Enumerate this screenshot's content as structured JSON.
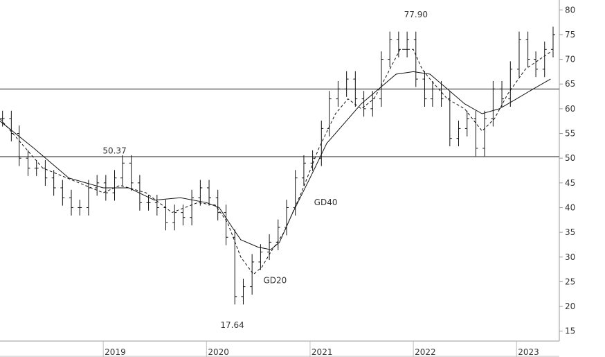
{
  "chart_data": {
    "type": "line",
    "title": "",
    "xlabel": "",
    "ylabel": "",
    "x_range": [
      "2018-01",
      "2023-06"
    ],
    "ylim": [
      13,
      82
    ],
    "y_ticks": [
      15,
      20,
      25,
      30,
      35,
      40,
      45,
      50,
      55,
      60,
      65,
      70,
      75,
      80
    ],
    "x_ticks": [
      {
        "label": "2019",
        "date": "2019-01"
      },
      {
        "label": "2020",
        "date": "2020-01"
      },
      {
        "label": "2021",
        "date": "2021-01"
      },
      {
        "label": "2022",
        "date": "2022-01"
      },
      {
        "label": "2023",
        "date": "2023-01"
      }
    ],
    "grid": false,
    "horizontal_lines": [
      64,
      50.3
    ],
    "series": [
      {
        "name": "",
        "style": "bar",
        "points": [
          [
            "2018-01-10",
            58
          ],
          [
            "2018-02-10",
            55
          ],
          [
            "2018-03-10",
            50
          ],
          [
            "2018-04-10",
            48
          ],
          [
            "2018-05-10",
            48
          ],
          [
            "2018-06-10",
            46
          ],
          [
            "2018-07-10",
            44
          ],
          [
            "2018-08-10",
            42
          ],
          [
            "2018-09-10",
            40
          ],
          [
            "2018-10-10",
            40
          ],
          [
            "2018-11-10",
            44
          ],
          [
            "2018-12-10",
            45
          ],
          [
            "2019-01-10",
            43
          ],
          [
            "2019-02-10",
            46
          ],
          [
            "2019-03-10",
            49
          ],
          [
            "2019-04-10",
            45
          ],
          [
            "2019-05-10",
            41
          ],
          [
            "2019-06-10",
            41
          ],
          [
            "2019-07-10",
            40
          ],
          [
            "2019-08-10",
            37
          ],
          [
            "2019-09-10",
            39
          ],
          [
            "2019-10-10",
            38
          ],
          [
            "2019-11-10",
            42
          ],
          [
            "2019-12-10",
            44
          ],
          [
            "2020-01-10",
            42
          ],
          [
            "2020-02-10",
            39
          ],
          [
            "2020-03-10",
            34
          ],
          [
            "2020-04-10",
            22
          ],
          [
            "2020-05-10",
            24
          ],
          [
            "2020-06-10",
            29
          ],
          [
            "2020-07-10",
            31
          ],
          [
            "2020-08-10",
            33
          ],
          [
            "2020-09-10",
            36
          ],
          [
            "2020-10-10",
            40
          ],
          [
            "2020-11-10",
            46
          ],
          [
            "2020-12-10",
            49
          ],
          [
            "2021-01-10",
            50
          ],
          [
            "2021-02-10",
            56
          ],
          [
            "2021-03-10",
            62
          ],
          [
            "2021-04-10",
            64
          ],
          [
            "2021-05-10",
            66
          ],
          [
            "2021-06-10",
            62
          ],
          [
            "2021-07-10",
            60
          ],
          [
            "2021-08-10",
            62
          ],
          [
            "2021-09-10",
            70
          ],
          [
            "2021-10-10",
            74
          ],
          [
            "2021-11-10",
            72
          ],
          [
            "2021-12-10",
            74
          ],
          [
            "2022-01-10",
            66
          ],
          [
            "2022-02-10",
            62
          ],
          [
            "2022-03-10",
            64
          ],
          [
            "2022-04-10",
            62
          ],
          [
            "2022-05-10",
            54
          ],
          [
            "2022-06-10",
            56
          ],
          [
            "2022-07-10",
            58
          ],
          [
            "2022-08-10",
            52
          ],
          [
            "2022-09-10",
            58
          ],
          [
            "2022-10-10",
            64
          ],
          [
            "2022-11-10",
            62
          ],
          [
            "2022-12-10",
            68
          ],
          [
            "2023-01-10",
            74
          ],
          [
            "2023-02-10",
            70
          ],
          [
            "2023-03-10",
            68
          ],
          [
            "2023-04-10",
            72
          ],
          [
            "2023-05-10",
            75
          ]
        ]
      },
      {
        "name": "GD20",
        "style": "dashed",
        "points": [
          [
            "2018-01-01",
            58
          ],
          [
            "2018-06-01",
            48
          ],
          [
            "2019-01-01",
            43
          ],
          [
            "2019-03-01",
            44.5
          ],
          [
            "2019-06-01",
            43
          ],
          [
            "2019-09-01",
            39
          ],
          [
            "2019-12-01",
            41
          ],
          [
            "2020-02-01",
            40.5
          ],
          [
            "2020-03-15",
            37
          ],
          [
            "2020-05-01",
            30
          ],
          [
            "2020-06-15",
            26.5
          ],
          [
            "2020-07-15",
            28
          ],
          [
            "2020-08-15",
            31
          ],
          [
            "2020-10-01",
            35
          ],
          [
            "2020-12-01",
            43
          ],
          [
            "2021-02-01",
            52
          ],
          [
            "2021-04-01",
            59
          ],
          [
            "2021-05-15",
            62
          ],
          [
            "2021-07-01",
            60
          ],
          [
            "2021-08-15",
            62
          ],
          [
            "2021-10-01",
            67
          ],
          [
            "2021-11-15",
            72
          ],
          [
            "2022-01-01",
            72
          ],
          [
            "2022-02-01",
            68
          ],
          [
            "2022-03-01",
            66
          ],
          [
            "2022-05-01",
            62
          ],
          [
            "2022-07-01",
            60
          ],
          [
            "2022-09-01",
            55.5
          ],
          [
            "2022-10-15",
            58
          ],
          [
            "2022-12-01",
            63
          ],
          [
            "2023-02-01",
            68
          ],
          [
            "2023-05-01",
            71.5
          ]
        ]
      },
      {
        "name": "GD40",
        "style": "solid",
        "points": [
          [
            "2018-01-01",
            57.5
          ],
          [
            "2018-05-01",
            52
          ],
          [
            "2018-09-01",
            46
          ],
          [
            "2019-01-01",
            44
          ],
          [
            "2019-04-01",
            44
          ],
          [
            "2019-07-01",
            41.5
          ],
          [
            "2019-10-01",
            42
          ],
          [
            "2020-01-01",
            41
          ],
          [
            "2020-02-15",
            40
          ],
          [
            "2020-04-01",
            36
          ],
          [
            "2020-05-01",
            33.5
          ],
          [
            "2020-07-01",
            32
          ],
          [
            "2020-08-15",
            31.5
          ],
          [
            "2020-09-15",
            33
          ],
          [
            "2020-11-01",
            39
          ],
          [
            "2021-01-01",
            46
          ],
          [
            "2021-03-01",
            53
          ],
          [
            "2021-05-01",
            57
          ],
          [
            "2021-07-01",
            61
          ],
          [
            "2021-09-01",
            64
          ],
          [
            "2021-11-01",
            67
          ],
          [
            "2022-01-01",
            67.5
          ],
          [
            "2022-03-01",
            67
          ],
          [
            "2022-05-01",
            64
          ],
          [
            "2022-07-01",
            61
          ],
          [
            "2022-09-01",
            59
          ],
          [
            "2022-11-01",
            60
          ],
          [
            "2023-01-01",
            62
          ],
          [
            "2023-03-01",
            64
          ],
          [
            "2023-05-01",
            66
          ]
        ]
      }
    ],
    "annotations": [
      {
        "text": "50.37",
        "date": "2019-02-10",
        "value": 50.37,
        "anchor": "above"
      },
      {
        "text": "77.90",
        "date": "2022-01-10",
        "value": 77.9,
        "anchor": "above"
      },
      {
        "text": "17.64",
        "date": "2020-04-01",
        "value": 17.64,
        "anchor": "below"
      },
      {
        "text": "GD40",
        "date": "2021-01-15",
        "value": 40.5,
        "anchor": "label"
      },
      {
        "text": "GD20",
        "date": "2020-07-20",
        "value": 24.7,
        "anchor": "label"
      }
    ]
  }
}
